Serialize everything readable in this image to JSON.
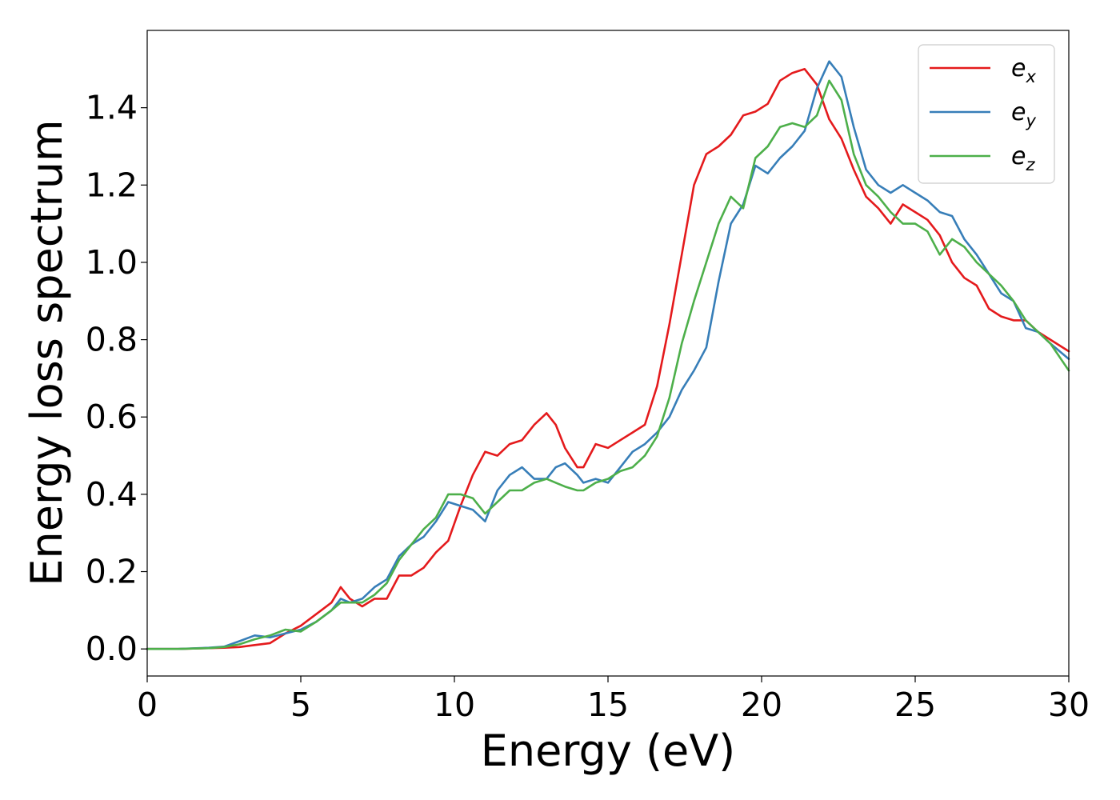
{
  "chart_data": {
    "type": "line",
    "title": "",
    "xlabel": "Energy (eV)",
    "ylabel": "Energy loss spectrum",
    "xlim": [
      0,
      30
    ],
    "ylim": [
      -0.07,
      1.6
    ],
    "xticks": [
      0,
      5,
      10,
      15,
      20,
      25,
      30
    ],
    "xtick_labels": [
      "0",
      "5",
      "10",
      "15",
      "20",
      "25",
      "30"
    ],
    "yticks": [
      0.0,
      0.2,
      0.4,
      0.6,
      0.8,
      1.0,
      1.2,
      1.4
    ],
    "ytick_labels": [
      "0.0",
      "0.2",
      "0.4",
      "0.6",
      "0.8",
      "1.0",
      "1.2",
      "1.4"
    ],
    "grid": false,
    "legend_position": "top-right",
    "series": [
      {
        "name": "e_x",
        "legend_base": "e",
        "legend_sub": "x",
        "color": "#e41a1c",
        "x": [
          0,
          1,
          2,
          2.5,
          3,
          3.5,
          4,
          4.5,
          5,
          5.5,
          6,
          6.3,
          6.6,
          7,
          7.4,
          7.8,
          8.2,
          8.6,
          9,
          9.4,
          9.8,
          10.2,
          10.6,
          11,
          11.4,
          11.8,
          12.2,
          12.6,
          13,
          13.3,
          13.6,
          14,
          14.2,
          14.6,
          15,
          15.4,
          15.8,
          16.2,
          16.6,
          17,
          17.4,
          17.8,
          18.2,
          18.6,
          19,
          19.4,
          19.8,
          20.2,
          20.6,
          21,
          21.4,
          21.8,
          22.2,
          22.6,
          23,
          23.4,
          23.8,
          24.2,
          24.6,
          25,
          25.4,
          25.8,
          26.2,
          26.6,
          27,
          27.4,
          27.8,
          28.2,
          28.6,
          29,
          29.4,
          30
        ],
        "y": [
          0.0,
          0.0,
          0.002,
          0.003,
          0.005,
          0.01,
          0.015,
          0.04,
          0.06,
          0.09,
          0.12,
          0.16,
          0.13,
          0.11,
          0.13,
          0.13,
          0.19,
          0.19,
          0.21,
          0.25,
          0.28,
          0.37,
          0.45,
          0.51,
          0.5,
          0.53,
          0.54,
          0.58,
          0.61,
          0.58,
          0.52,
          0.47,
          0.47,
          0.53,
          0.52,
          0.54,
          0.56,
          0.58,
          0.68,
          0.84,
          1.02,
          1.2,
          1.28,
          1.3,
          1.33,
          1.38,
          1.39,
          1.41,
          1.47,
          1.49,
          1.5,
          1.46,
          1.37,
          1.32,
          1.24,
          1.17,
          1.14,
          1.1,
          1.15,
          1.13,
          1.11,
          1.07,
          1.0,
          0.96,
          0.94,
          0.88,
          0.86,
          0.85,
          0.85,
          0.82,
          0.8,
          0.77
        ]
      },
      {
        "name": "e_y",
        "legend_base": "e",
        "legend_sub": "y",
        "color": "#377eb8",
        "x": [
          0,
          1,
          2,
          2.5,
          3,
          3.5,
          4,
          4.5,
          5,
          5.5,
          6,
          6.3,
          6.6,
          7,
          7.4,
          7.8,
          8.2,
          8.6,
          9,
          9.4,
          9.8,
          10.2,
          10.6,
          11,
          11.4,
          11.8,
          12.2,
          12.6,
          13,
          13.3,
          13.6,
          14,
          14.2,
          14.6,
          15,
          15.4,
          15.8,
          16.2,
          16.6,
          17,
          17.4,
          17.8,
          18.2,
          18.6,
          19,
          19.4,
          19.8,
          20.2,
          20.6,
          21,
          21.4,
          21.8,
          22.2,
          22.6,
          23,
          23.4,
          23.8,
          24.2,
          24.6,
          25,
          25.4,
          25.8,
          26.2,
          26.6,
          27,
          27.4,
          27.8,
          28.2,
          28.6,
          29,
          29.4,
          30
        ],
        "y": [
          0.0,
          0.0,
          0.003,
          0.006,
          0.02,
          0.035,
          0.03,
          0.04,
          0.05,
          0.07,
          0.1,
          0.13,
          0.12,
          0.13,
          0.16,
          0.18,
          0.24,
          0.27,
          0.29,
          0.33,
          0.38,
          0.37,
          0.36,
          0.33,
          0.41,
          0.45,
          0.47,
          0.44,
          0.44,
          0.47,
          0.48,
          0.45,
          0.43,
          0.44,
          0.43,
          0.47,
          0.51,
          0.53,
          0.56,
          0.6,
          0.67,
          0.72,
          0.78,
          0.95,
          1.1,
          1.15,
          1.25,
          1.23,
          1.27,
          1.3,
          1.34,
          1.45,
          1.52,
          1.48,
          1.35,
          1.24,
          1.2,
          1.18,
          1.2,
          1.18,
          1.16,
          1.13,
          1.12,
          1.06,
          1.02,
          0.97,
          0.92,
          0.9,
          0.83,
          0.82,
          0.79,
          0.75
        ]
      },
      {
        "name": "e_z",
        "legend_base": "e",
        "legend_sub": "z",
        "color": "#4daf4a",
        "x": [
          0,
          1,
          2,
          2.5,
          3,
          3.5,
          4,
          4.5,
          5,
          5.5,
          6,
          6.3,
          6.6,
          7,
          7.4,
          7.8,
          8.2,
          8.6,
          9,
          9.4,
          9.8,
          10.2,
          10.6,
          11,
          11.4,
          11.8,
          12.2,
          12.6,
          13,
          13.3,
          13.6,
          14,
          14.2,
          14.6,
          15,
          15.4,
          15.8,
          16.2,
          16.6,
          17,
          17.4,
          17.8,
          18.2,
          18.6,
          19,
          19.4,
          19.8,
          20.2,
          20.6,
          21,
          21.4,
          21.8,
          22.2,
          22.6,
          23,
          23.4,
          23.8,
          24.2,
          24.6,
          25,
          25.4,
          25.8,
          26.2,
          26.6,
          27,
          27.4,
          27.8,
          28.2,
          28.6,
          29,
          29.4,
          30
        ],
        "y": [
          0.0,
          0.0,
          0.002,
          0.005,
          0.012,
          0.025,
          0.035,
          0.05,
          0.045,
          0.07,
          0.1,
          0.12,
          0.12,
          0.12,
          0.14,
          0.17,
          0.23,
          0.27,
          0.31,
          0.34,
          0.4,
          0.4,
          0.39,
          0.35,
          0.38,
          0.41,
          0.41,
          0.43,
          0.44,
          0.43,
          0.42,
          0.41,
          0.41,
          0.43,
          0.44,
          0.46,
          0.47,
          0.5,
          0.55,
          0.65,
          0.79,
          0.9,
          1.0,
          1.1,
          1.17,
          1.14,
          1.27,
          1.3,
          1.35,
          1.36,
          1.35,
          1.38,
          1.47,
          1.42,
          1.28,
          1.2,
          1.17,
          1.13,
          1.1,
          1.1,
          1.08,
          1.02,
          1.06,
          1.04,
          1.0,
          0.97,
          0.94,
          0.9,
          0.85,
          0.82,
          0.79,
          0.72
        ]
      }
    ]
  }
}
